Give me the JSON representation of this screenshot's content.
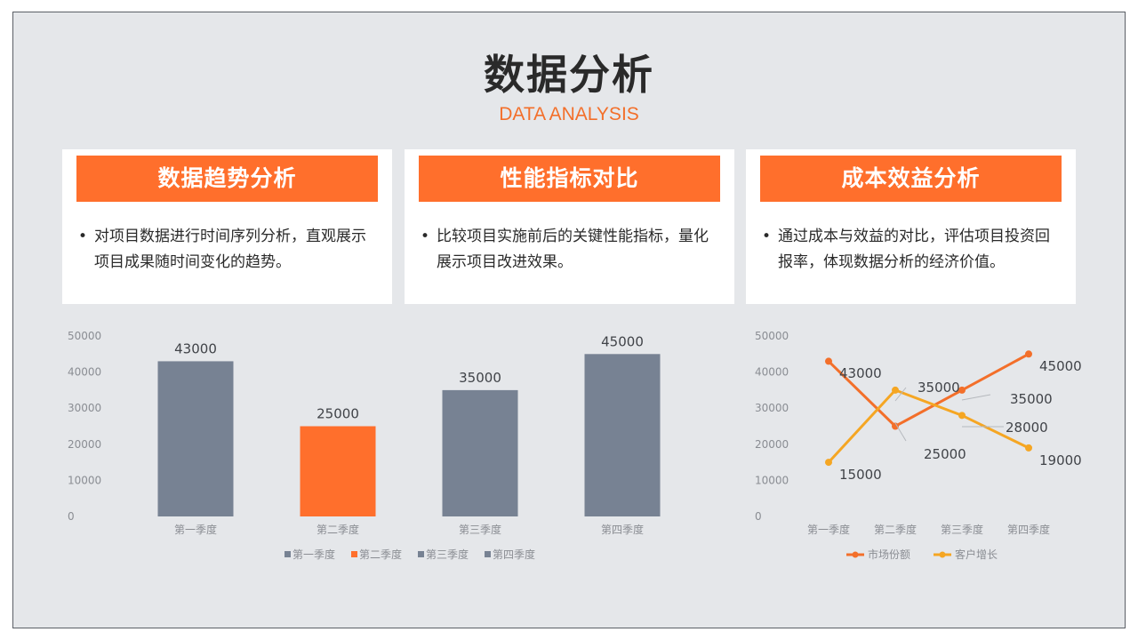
{
  "title": "数据分析",
  "subtitle": "DATA ANALYSIS",
  "cards": [
    {
      "header": "数据趋势分析",
      "text": "对项目数据进行时间序列分析，直观展示项目成果随时间变化的趋势。"
    },
    {
      "header": "性能指标对比",
      "text": "比较项目实施前后的关键性能指标，量化展示项目改进效果。"
    },
    {
      "header": "成本效益分析",
      "text": "通过成本与效益的对比，评估项目投资回报率，体现数据分析的经济价值。"
    }
  ],
  "colors": {
    "accent": "#ff6f2c",
    "gray_bar": "#778293",
    "line2": "#f5a623"
  },
  "chart_data": [
    {
      "type": "bar",
      "categories": [
        "第一季度",
        "第二季度",
        "第三季度",
        "第四季度"
      ],
      "values": [
        43000,
        25000,
        35000,
        45000
      ],
      "bar_colors": [
        "#778293",
        "#ff6f2c",
        "#778293",
        "#778293"
      ],
      "ylim": [
        0,
        50000
      ],
      "yticks": [
        0,
        10000,
        20000,
        30000,
        40000,
        50000
      ],
      "legend": [
        "第一季度",
        "第二季度",
        "第三季度",
        "第四季度"
      ],
      "legend_position": "bottom",
      "grid": false
    },
    {
      "type": "line",
      "categories": [
        "第一季度",
        "第二季度",
        "第三季度",
        "第四季度"
      ],
      "series": [
        {
          "name": "市场份额",
          "color": "#f36f2a",
          "values": [
            43000,
            25000,
            35000,
            45000
          ]
        },
        {
          "name": "客户增长",
          "color": "#f5a623",
          "values": [
            15000,
            35000,
            28000,
            19000
          ]
        }
      ],
      "ylim": [
        0,
        50000
      ],
      "yticks": [
        0,
        10000,
        20000,
        30000,
        40000,
        50000
      ],
      "legend_position": "bottom",
      "grid": false
    }
  ]
}
